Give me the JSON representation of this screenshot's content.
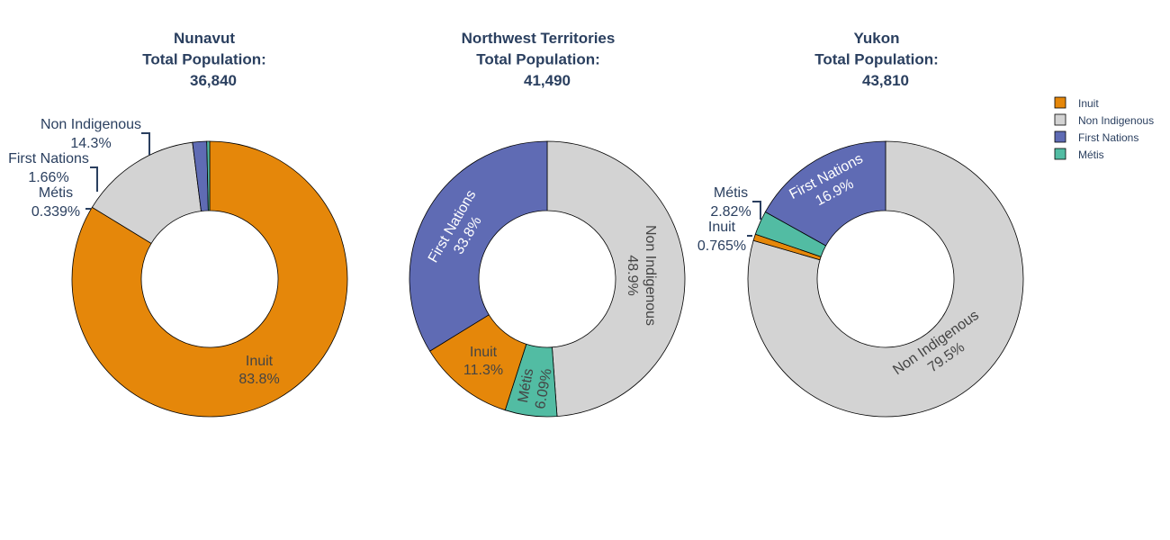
{
  "chart_data": [
    {
      "type": "pie",
      "hole": true,
      "title_lines": [
        "Nunavut",
        "Total Population:",
        "36,840"
      ],
      "categories": [
        "Inuit",
        "Non Indigenous",
        "First Nations",
        "Métis"
      ],
      "values": [
        83.8,
        14.3,
        1.66,
        0.339
      ],
      "labels": [
        [
          "Inuit",
          "83.8%"
        ],
        [
          "Non Indigenous",
          "14.3%"
        ],
        [
          "First Nations",
          "1.66%"
        ],
        [
          "Métis",
          "0.339%"
        ]
      ]
    },
    {
      "type": "pie",
      "hole": true,
      "title_lines": [
        "Northwest Territories",
        "Total Population:",
        "41,490"
      ],
      "categories": [
        "Non Indigenous",
        "Métis",
        "Inuit",
        "First Nations"
      ],
      "values": [
        48.9,
        6.09,
        11.3,
        33.8
      ],
      "labels": [
        [
          "Non Indigenous",
          "48.9%"
        ],
        [
          "Métis",
          "6.09%"
        ],
        [
          "Inuit",
          "11.3%"
        ],
        [
          "First Nations",
          "33.8%"
        ]
      ]
    },
    {
      "type": "pie",
      "hole": true,
      "title_lines": [
        "Yukon",
        "Total Population:",
        "43,810"
      ],
      "categories": [
        "Non Indigenous",
        "Inuit",
        "Métis",
        "First Nations"
      ],
      "values": [
        79.5,
        0.765,
        2.82,
        16.9
      ],
      "labels": [
        [
          "Non Indigenous",
          "79.5%"
        ],
        [
          "Inuit",
          "0.765%"
        ],
        [
          "Métis",
          "2.82%"
        ],
        [
          "First Nations",
          "16.9%"
        ]
      ]
    }
  ],
  "legend": {
    "placement": "top-right",
    "items": [
      {
        "label": "Inuit",
        "color": "#e5870a"
      },
      {
        "label": "Non Indigenous",
        "color": "#d3d3d3"
      },
      {
        "label": "First Nations",
        "color": "#5f6bb4"
      },
      {
        "label": "Métis",
        "color": "#52bca3"
      }
    ]
  },
  "colors": {
    "Inuit": "#e5870a",
    "Non Indigenous": "#d3d3d3",
    "First Nations": "#5f6bb4",
    "Métis": "#52bca3",
    "title": "#2a3f5f"
  }
}
